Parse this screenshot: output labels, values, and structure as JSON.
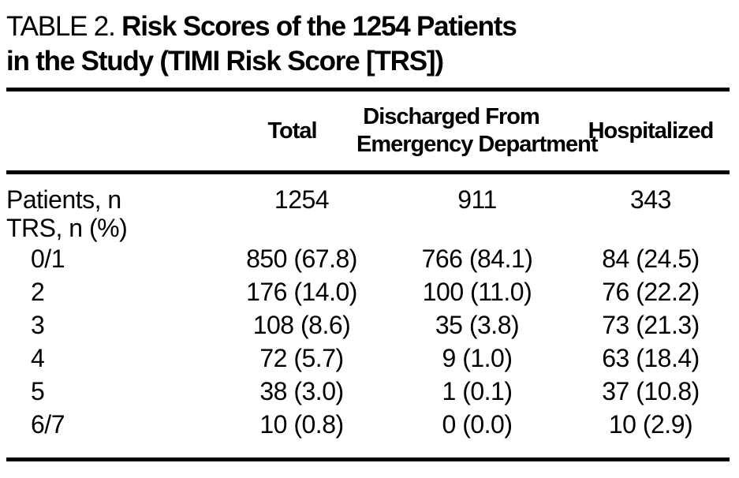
{
  "title": {
    "label": "TABLE 2.",
    "line1_bold": "Risk Scores of the 1254 Patients",
    "line2_bold": "in the Study (TIMI Risk Score [TRS])"
  },
  "table": {
    "columns": {
      "row_header": "",
      "total": "Total",
      "discharged_line1": "Discharged From",
      "discharged_line2": "Emergency Department",
      "hospitalized": "Hospitalized"
    },
    "rows": [
      {
        "label": "Patients, n",
        "total": "1254",
        "discharged": "911",
        "hospitalized": "343"
      },
      {
        "label": "TRS, n (%)",
        "total": "",
        "discharged": "",
        "hospitalized": ""
      },
      {
        "label": "0/1",
        "total": "850 (67.8)",
        "discharged": "766 (84.1)",
        "hospitalized": "84 (24.5)"
      },
      {
        "label": "2",
        "total": "176 (14.0)",
        "discharged": "100 (11.0)",
        "hospitalized": "76 (22.2)"
      },
      {
        "label": "3",
        "total": "108 (8.6)",
        "discharged": "35 (3.8)",
        "hospitalized": "73 (21.3)"
      },
      {
        "label": "4",
        "total": "72 (5.7)",
        "discharged": "9 (1.0)",
        "hospitalized": "63 (18.4)"
      },
      {
        "label": "5",
        "total": "38 (3.0)",
        "discharged": "1 (0.1)",
        "hospitalized": "37 (10.8)"
      },
      {
        "label": "6/7",
        "total": "10 (0.8)",
        "discharged": "0 (0.0)",
        "hospitalized": "10 (2.9)"
      }
    ]
  },
  "colors": {
    "text": "#000000",
    "background": "#ffffff",
    "rule": "#000000"
  }
}
